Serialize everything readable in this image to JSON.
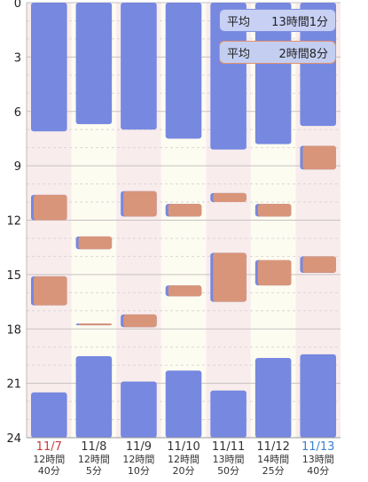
{
  "colors": {
    "sleep": "#7688e0",
    "nap": "#d9957a",
    "nap_edge": "#7688e0",
    "band_pink": "#f8ecec",
    "band_cream": "#fdfcf1",
    "weekend_sat": "#cc3b3b",
    "weekend_sun": "#3b7fd4",
    "weekday": "#333333"
  },
  "legend": {
    "sleep": {
      "label": "平均",
      "value": "13時間1分"
    },
    "nap": {
      "label": "平均",
      "value": "2時間8分"
    }
  },
  "chart_data": {
    "type": "bar",
    "orientation": "vertical-timeline",
    "y_ticks": [
      "0",
      "3",
      "6",
      "9",
      "12",
      "15",
      "18",
      "21",
      "24"
    ],
    "ylim": [
      0,
      24
    ],
    "grid": true,
    "days": [
      {
        "date": "11/7",
        "weekday": "sat",
        "total_h": "12時間",
        "total_m": "40分",
        "sleep": [
          [
            0,
            7.1
          ],
          [
            21.5,
            24
          ]
        ],
        "nap": [
          [
            10.6,
            12
          ],
          [
            15.1,
            16.7
          ]
        ]
      },
      {
        "date": "11/8",
        "weekday": "weekday",
        "total_h": "12時間",
        "total_m": "5分",
        "sleep": [
          [
            0,
            6.7
          ],
          [
            19.5,
            24
          ]
        ],
        "nap": [
          [
            12.9,
            13.6
          ],
          [
            17.7,
            17.8
          ]
        ]
      },
      {
        "date": "11/9",
        "weekday": "weekday",
        "total_h": "12時間",
        "total_m": "10分",
        "sleep": [
          [
            0,
            7.0
          ],
          [
            20.9,
            24
          ]
        ],
        "nap": [
          [
            10.4,
            11.8
          ],
          [
            17.2,
            17.9
          ]
        ]
      },
      {
        "date": "11/10",
        "weekday": "weekday",
        "total_h": "12時間",
        "total_m": "20分",
        "sleep": [
          [
            0,
            7.5
          ],
          [
            20.3,
            24
          ]
        ],
        "nap": [
          [
            11.1,
            11.8
          ],
          [
            15.6,
            16.2
          ]
        ]
      },
      {
        "date": "11/11",
        "weekday": "weekday",
        "total_h": "13時間",
        "total_m": "50分",
        "sleep": [
          [
            0,
            8.1
          ],
          [
            21.4,
            24
          ]
        ],
        "nap": [
          [
            10.5,
            11.0
          ],
          [
            13.8,
            16.5
          ]
        ]
      },
      {
        "date": "11/12",
        "weekday": "weekday",
        "total_h": "14時間",
        "total_m": "25分",
        "sleep": [
          [
            0,
            7.8
          ],
          [
            19.6,
            24
          ]
        ],
        "nap": [
          [
            11.1,
            11.8
          ],
          [
            14.2,
            15.6
          ]
        ]
      },
      {
        "date": "11/13",
        "weekday": "sun",
        "total_h": "13時間",
        "total_m": "40分",
        "sleep": [
          [
            0,
            6.8
          ],
          [
            19.4,
            24
          ]
        ],
        "nap": [
          [
            7.9,
            9.2
          ],
          [
            14.0,
            14.9
          ]
        ]
      }
    ]
  }
}
